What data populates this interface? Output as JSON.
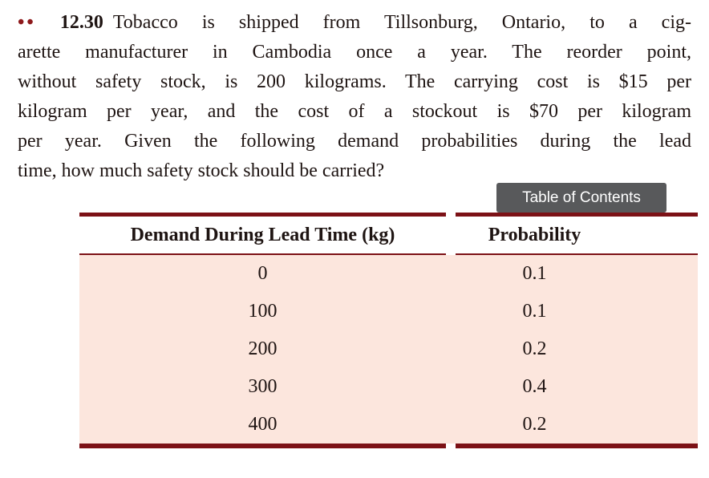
{
  "problem": {
    "difficulty_dots": "••",
    "number": "12.30",
    "line1": "Tobacco is shipped from Tillsonburg, Ontario, to a cig-",
    "line2": "arette manufacturer in Cambodia once a year. The reorder point,",
    "line3": "without safety stock, is 200 kilograms. The carrying cost is $15 per",
    "line4": "kilogram per year, and the cost of a stockout is $70 per kilogram",
    "line5": "per year. Given the following demand probabilities during the lead",
    "line6": "time, how much safety stock should be carried?"
  },
  "toc_button": {
    "label": "Table of Contents"
  },
  "table": {
    "headers": [
      "Demand During Lead Time (kg)",
      "Probability"
    ],
    "rows": [
      {
        "demand": "0",
        "probability": "0.1"
      },
      {
        "demand": "100",
        "probability": "0.1"
      },
      {
        "demand": "200",
        "probability": "0.2"
      },
      {
        "demand": "300",
        "probability": "0.4"
      },
      {
        "demand": "400",
        "probability": "0.2"
      }
    ]
  },
  "colors": {
    "table_border": "#7c1116",
    "table_bg": "#fce6dd",
    "toc_bg": "#58595b",
    "accent_maroon": "#8e1a1c",
    "text_color": "#1e1412"
  }
}
